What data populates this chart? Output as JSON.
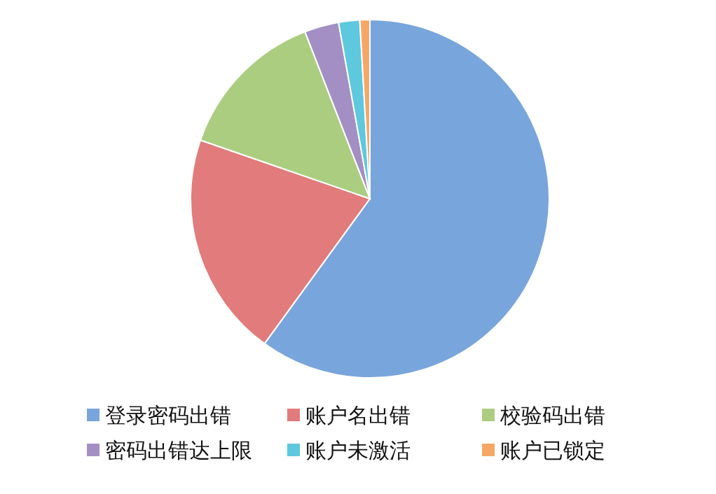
{
  "chart_data": {
    "type": "pie",
    "categories": [
      "登录密码出错",
      "账户名出错",
      "校验码出错",
      "密码出错达上限",
      "账户未激活",
      "账户已锁定"
    ],
    "values": [
      60,
      20.3,
      13.8,
      3.1,
      1.9,
      0.9
    ],
    "colors": [
      "#78a5dc",
      "#e27b7b",
      "#abcd80",
      "#a48fc4",
      "#5ec8de",
      "#f5a866"
    ],
    "legend": "bottom"
  }
}
